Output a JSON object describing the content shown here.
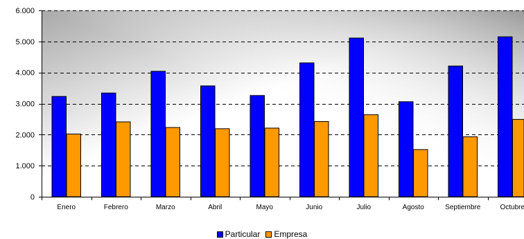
{
  "colors": {
    "particular": "#0000ff",
    "empresa": "#ff9900",
    "bar_stroke": "#000000",
    "gridline": "#000000"
  },
  "legend": {
    "particular_label": "Particular",
    "empresa_label": "Empresa"
  },
  "chart_data": {
    "type": "bar",
    "categories": [
      "Enero",
      "Febrero",
      "Marzo",
      "Abril",
      "Mayo",
      "Junio",
      "Julio",
      "Agosto",
      "Septiembre",
      "Octubre"
    ],
    "series": [
      {
        "name": "Particular",
        "values": [
          3230,
          3340,
          4040,
          3570,
          3260,
          4310,
          5110,
          3060,
          4210,
          5150
        ]
      },
      {
        "name": "Empresa",
        "values": [
          2020,
          2410,
          2230,
          2190,
          2210,
          2420,
          2640,
          1520,
          1930,
          2490
        ]
      }
    ],
    "ylim": [
      0,
      6000
    ],
    "yticks": [
      0,
      1000,
      2000,
      3000,
      4000,
      5000,
      6000
    ],
    "ytick_labels": [
      "0",
      "1.000",
      "2.000",
      "3.000",
      "4.000",
      "5.000",
      "6.000"
    ],
    "grid": true,
    "legend_position": "bottom",
    "background": "white-to-gray gradient"
  }
}
